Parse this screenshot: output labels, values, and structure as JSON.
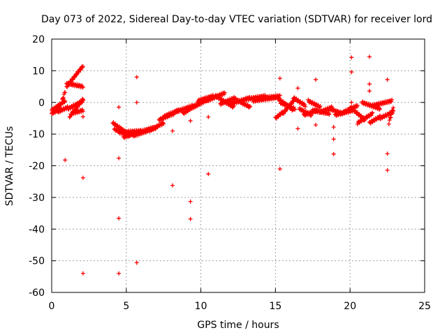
{
  "chart_data": {
    "type": "scatter",
    "title": "Day 073 of 2022, Sidereal Day-to-day VTEC variation (SDTVAR) for receiver lord",
    "xlabel": "GPS time / hours",
    "ylabel": "SDTVAR / TECUs",
    "xlim": [
      0,
      25
    ],
    "ylim": [
      -60,
      20
    ],
    "xticks": [
      0,
      5,
      10,
      15,
      20,
      25
    ],
    "yticks": [
      -60,
      -50,
      -40,
      -30,
      -20,
      -10,
      0,
      10,
      20
    ],
    "grid": true,
    "marker": "+",
    "color": "#ff0000",
    "segments": [
      {
        "x0": 0.0,
        "x1": 0.6,
        "y0": -3.5,
        "y1": -2.0
      },
      {
        "x0": 0.0,
        "x1": 0.9,
        "y0": -2.5,
        "y1": 0.5
      },
      {
        "x0": 0.6,
        "x1": 0.9,
        "y0": -1.0,
        "y1": 3.5
      },
      {
        "x0": 0.4,
        "x1": 1.1,
        "y0": -3.0,
        "y1": -1.5
      },
      {
        "x0": 1.0,
        "x1": 2.1,
        "y0": 5.0,
        "y1": 11.5
      },
      {
        "x0": 1.0,
        "x1": 2.1,
        "y0": 6.0,
        "y1": 5.0
      },
      {
        "x0": 1.1,
        "x1": 2.1,
        "y0": -2.0,
        "y1": 0.5
      },
      {
        "x0": 1.2,
        "x1": 2.1,
        "y0": -4.5,
        "y1": 1.0
      },
      {
        "x0": 1.3,
        "x1": 2.1,
        "y0": -3.5,
        "y1": -2.5
      },
      {
        "x0": 4.1,
        "x1": 5.0,
        "y0": -6.5,
        "y1": -9.5
      },
      {
        "x0": 4.2,
        "x1": 5.2,
        "y0": -8.5,
        "y1": -10.5
      },
      {
        "x0": 4.5,
        "x1": 6.0,
        "y0": -9.5,
        "y1": -9.0
      },
      {
        "x0": 4.8,
        "x1": 6.8,
        "y0": -11.0,
        "y1": -8.0
      },
      {
        "x0": 5.5,
        "x1": 7.0,
        "y0": -10.5,
        "y1": -8.0
      },
      {
        "x0": 6.5,
        "x1": 7.5,
        "y0": -9.0,
        "y1": -6.5
      },
      {
        "x0": 7.2,
        "x1": 8.2,
        "y0": -5.5,
        "y1": -3.5
      },
      {
        "x0": 7.5,
        "x1": 8.5,
        "y0": -4.5,
        "y1": -2.5
      },
      {
        "x0": 8.3,
        "x1": 9.5,
        "y0": -3.0,
        "y1": -1.0
      },
      {
        "x0": 8.8,
        "x1": 9.8,
        "y0": -3.5,
        "y1": -0.5
      },
      {
        "x0": 9.5,
        "x1": 10.5,
        "y0": -1.5,
        "y1": 1.0
      },
      {
        "x0": 9.8,
        "x1": 10.8,
        "y0": 0.5,
        "y1": 2.0
      },
      {
        "x0": 10.4,
        "x1": 11.6,
        "y0": 0.5,
        "y1": 3.0
      },
      {
        "x0": 11.0,
        "x1": 12.2,
        "y0": 2.0,
        "y1": -1.5
      },
      {
        "x0": 11.3,
        "x1": 12.3,
        "y0": -0.5,
        "y1": 1.5
      },
      {
        "x0": 12.0,
        "x1": 13.3,
        "y0": -0.5,
        "y1": 1.5
      },
      {
        "x0": 12.3,
        "x1": 13.3,
        "y0": 1.0,
        "y1": -1.5
      },
      {
        "x0": 13.0,
        "x1": 14.3,
        "y0": 1.0,
        "y1": 2.0
      },
      {
        "x0": 13.5,
        "x1": 15.0,
        "y0": 0.5,
        "y1": 1.5
      },
      {
        "x0": 14.3,
        "x1": 15.3,
        "y0": 1.5,
        "y1": 2.0
      },
      {
        "x0": 15.0,
        "x1": 15.5,
        "y0": -5.0,
        "y1": -3.0
      },
      {
        "x0": 15.1,
        "x1": 16.2,
        "y0": 1.5,
        "y1": -2.5
      },
      {
        "x0": 15.3,
        "x1": 16.3,
        "y0": 0.0,
        "y1": -2.0
      },
      {
        "x0": 15.5,
        "x1": 16.3,
        "y0": -3.5,
        "y1": 1.0
      },
      {
        "x0": 16.2,
        "x1": 17.0,
        "y0": 1.5,
        "y1": -1.0
      },
      {
        "x0": 16.6,
        "x1": 17.4,
        "y0": -2.0,
        "y1": -4.0
      },
      {
        "x0": 16.9,
        "x1": 17.8,
        "y0": -4.0,
        "y1": -2.5
      },
      {
        "x0": 17.2,
        "x1": 18.0,
        "y0": 0.5,
        "y1": -1.5
      },
      {
        "x0": 17.5,
        "x1": 18.6,
        "y0": -2.5,
        "y1": -3.5
      },
      {
        "x0": 18.0,
        "x1": 18.8,
        "y0": -3.0,
        "y1": -1.5
      },
      {
        "x0": 18.6,
        "x1": 19.5,
        "y0": -2.0,
        "y1": -3.5
      },
      {
        "x0": 19.0,
        "x1": 20.2,
        "y0": -4.0,
        "y1": -2.5
      },
      {
        "x0": 19.6,
        "x1": 20.5,
        "y0": -3.0,
        "y1": -1.0
      },
      {
        "x0": 20.0,
        "x1": 21.0,
        "y0": -1.5,
        "y1": -5.5
      },
      {
        "x0": 20.5,
        "x1": 21.5,
        "y0": -6.5,
        "y1": -3.5
      },
      {
        "x0": 20.8,
        "x1": 22.0,
        "y0": 0.0,
        "y1": -2.0
      },
      {
        "x0": 21.3,
        "x1": 22.0,
        "y0": -6.5,
        "y1": -4.5
      },
      {
        "x0": 21.5,
        "x1": 22.8,
        "y0": -1.0,
        "y1": 0.5
      },
      {
        "x0": 22.0,
        "x1": 22.9,
        "y0": -5.0,
        "y1": -3.0
      },
      {
        "x0": 22.6,
        "x1": 22.9,
        "y0": -6.5,
        "y1": -1.5
      }
    ],
    "outliers": [
      [
        0.9,
        -18.2
      ],
      [
        2.1,
        -23.8
      ],
      [
        2.1,
        -54.0
      ],
      [
        2.1,
        -4.5
      ],
      [
        4.5,
        -54.0
      ],
      [
        4.5,
        -36.6
      ],
      [
        4.5,
        -17.6
      ],
      [
        4.5,
        -1.5
      ],
      [
        5.7,
        8.0
      ],
      [
        5.7,
        0.0
      ],
      [
        5.7,
        -50.6
      ],
      [
        8.1,
        -26.2
      ],
      [
        8.1,
        -9.0
      ],
      [
        9.3,
        -31.3
      ],
      [
        9.3,
        -36.8
      ],
      [
        9.3,
        -5.8
      ],
      [
        10.5,
        -22.6
      ],
      [
        10.5,
        -4.6
      ],
      [
        15.3,
        7.6
      ],
      [
        15.3,
        -21.0
      ],
      [
        16.5,
        4.5
      ],
      [
        16.5,
        -8.3
      ],
      [
        17.7,
        7.2
      ],
      [
        17.7,
        -7.1
      ],
      [
        18.9,
        -7.8
      ],
      [
        18.9,
        -11.6
      ],
      [
        18.9,
        -16.3
      ],
      [
        20.1,
        14.2
      ],
      [
        20.1,
        9.6
      ],
      [
        20.1,
        0.0
      ],
      [
        21.3,
        14.4
      ],
      [
        21.3,
        5.8
      ],
      [
        21.3,
        3.6
      ],
      [
        22.5,
        7.2
      ],
      [
        22.5,
        -16.2
      ],
      [
        22.5,
        -21.4
      ]
    ]
  }
}
